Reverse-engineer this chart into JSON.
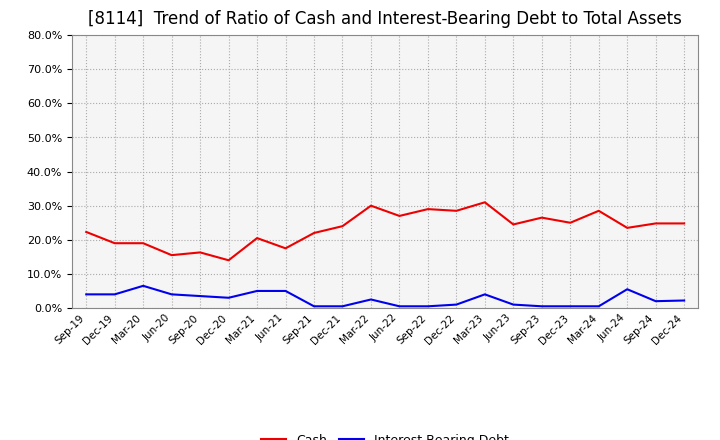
{
  "title": "[8114]  Trend of Ratio of Cash and Interest-Bearing Debt to Total Assets",
  "x_labels": [
    "Sep-19",
    "Dec-19",
    "Mar-20",
    "Jun-20",
    "Sep-20",
    "Dec-20",
    "Mar-21",
    "Jun-21",
    "Sep-21",
    "Dec-21",
    "Mar-22",
    "Jun-22",
    "Sep-22",
    "Dec-22",
    "Mar-23",
    "Jun-23",
    "Sep-23",
    "Dec-23",
    "Mar-24",
    "Jun-24",
    "Sep-24",
    "Dec-24"
  ],
  "cash": [
    0.223,
    0.19,
    0.19,
    0.155,
    0.163,
    0.14,
    0.205,
    0.175,
    0.22,
    0.24,
    0.3,
    0.27,
    0.29,
    0.285,
    0.31,
    0.245,
    0.265,
    0.25,
    0.285,
    0.235,
    0.248,
    0.248
  ],
  "ibd": [
    0.04,
    0.04,
    0.065,
    0.04,
    0.035,
    0.03,
    0.05,
    0.05,
    0.005,
    0.005,
    0.025,
    0.005,
    0.005,
    0.01,
    0.04,
    0.01,
    0.005,
    0.005,
    0.005,
    0.055,
    0.02,
    0.022
  ],
  "cash_color": "#ee0000",
  "ibd_color": "#0000ee",
  "ylim": [
    0.0,
    0.8
  ],
  "yticks": [
    0.0,
    0.1,
    0.2,
    0.3,
    0.4,
    0.5,
    0.6,
    0.7,
    0.8
  ],
  "background_color": "#ffffff",
  "plot_bg_color": "#f5f5f5",
  "grid_color": "#aaaaaa",
  "title_fontsize": 12,
  "legend_cash": "Cash",
  "legend_ibd": "Interest-Bearing Debt"
}
